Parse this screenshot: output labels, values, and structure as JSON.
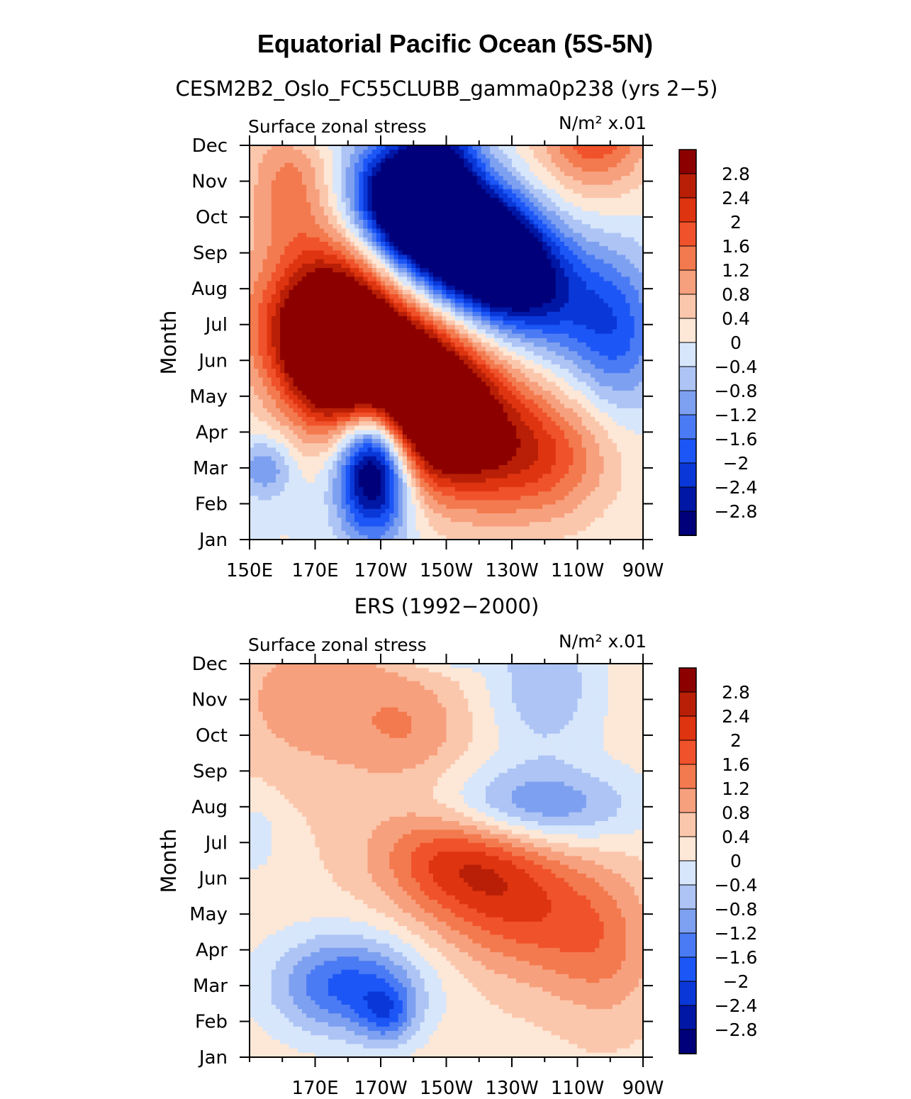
{
  "figure": {
    "title": "Equatorial Pacific Ocean (5S-5N)"
  },
  "colorbar": {
    "levels": [
      -2.8,
      -2.4,
      -2,
      -1.6,
      -1.2,
      -0.8,
      -0.4,
      0,
      0.4,
      0.8,
      1.2,
      1.6,
      2,
      2.4,
      2.8
    ],
    "labels": [
      "2.8",
      "2.4",
      "2",
      "1.6",
      "1.2",
      "0.8",
      "0.4",
      "0",
      "−0.4",
      "−0.8",
      "−1.2",
      "−1.6",
      "−2",
      "−2.4",
      "−2.8"
    ],
    "colors": [
      "#00007a",
      "#0016a5",
      "#0a38d8",
      "#1c56f6",
      "#4a7bf4",
      "#7ea0f0",
      "#adc4f5",
      "#d7e6fb",
      "#fde7d6",
      "#fbc7ac",
      "#f7a07e",
      "#f37a4e",
      "#f0522b",
      "#df3410",
      "#b81f06",
      "#8c0000"
    ]
  },
  "chart_data": [
    {
      "type": "heatmap",
      "title": "CESM2B2_Oslo_FC55CLUBB_gamma0p238 (yrs 2−5)",
      "left_label": "Surface zonal stress",
      "right_label": "N/m² x.01",
      "ylabel": "Month",
      "xlabel": "",
      "x_range_deg_east": [
        150,
        270
      ],
      "x_ticks": [
        150,
        170,
        190,
        210,
        230,
        250,
        270
      ],
      "x_tick_labels": [
        "150E",
        "170E",
        "170W",
        "150W",
        "130W",
        "110W",
        "90W"
      ],
      "y_tick_labels": [
        "Jan",
        "Feb",
        "Mar",
        "Apr",
        "May",
        "Jun",
        "Jul",
        "Aug",
        "Sep",
        "Oct",
        "Nov",
        "Dec"
      ],
      "features": [
        {
          "lon": 188,
          "month": 2.3,
          "amp": -5.0,
          "slon": 8,
          "smon": 1.4,
          "pad": 1
        },
        {
          "lon": 155,
          "month": 2.0,
          "amp": -1.2,
          "slon": 6,
          "smon": 0.6,
          "pad": 1
        },
        {
          "lon": 195,
          "month": 4.2,
          "amp": 6.5,
          "slon": 24,
          "smon": 1.6,
          "tilt": -0.035
        },
        {
          "lon": 176,
          "month": 5.6,
          "amp": 2.2,
          "slon": 10,
          "smon": 1.0
        },
        {
          "lon": 243,
          "month": 2.4,
          "amp": 1.2,
          "slon": 14,
          "smon": 1.2
        },
        {
          "lon": 218,
          "month": 8.2,
          "amp": -6.0,
          "slon": 20,
          "smon": 1.3,
          "tilt": -0.04
        },
        {
          "lon": 200,
          "month": 9.6,
          "amp": -2.8,
          "slon": 10,
          "smon": 1.0
        },
        {
          "lon": 262,
          "month": 5.8,
          "amp": -1.5,
          "slon": 10,
          "smon": 1.6
        },
        {
          "lon": 175,
          "month": 7.2,
          "amp": 1.3,
          "slon": 12,
          "smon": 1.2
        },
        {
          "lon": 163,
          "month": 10.0,
          "amp": 1.4,
          "slon": 10,
          "smon": 1.4
        },
        {
          "lon": 255,
          "month": 11.4,
          "amp": 2.0,
          "slon": 12,
          "smon": 1.2
        },
        {
          "lon": 168,
          "month": 11.8,
          "amp": -1.0,
          "slon": 8,
          "smon": 0.5
        },
        {
          "lon": 210,
          "month": 11.0,
          "amp": -1.3,
          "slon": 8,
          "smon": 0.8
        }
      ]
    },
    {
      "type": "heatmap",
      "title": "ERS (1992−2000)",
      "left_label": "Surface zonal stress",
      "right_label": "N/m² x.01",
      "ylabel": "Month",
      "xlabel": "",
      "x_range_deg_east": [
        150,
        270
      ],
      "x_ticks": [
        170,
        190,
        210,
        230,
        250,
        270
      ],
      "x_tick_labels": [
        "170E",
        "170W",
        "150W",
        "130W",
        "110W",
        "90W"
      ],
      "y_tick_labels": [
        "Jan",
        "Feb",
        "Mar",
        "Apr",
        "May",
        "Jun",
        "Jul",
        "Aug",
        "Sep",
        "Oct",
        "Nov",
        "Dec"
      ],
      "features": [
        {
          "lon": 180,
          "month": 2.0,
          "amp": -2.0,
          "slon": 16,
          "smon": 1.0,
          "pad": 1
        },
        {
          "lon": 192,
          "month": 1.2,
          "amp": -1.2,
          "slon": 6,
          "smon": 0.6,
          "pad": 1
        },
        {
          "lon": 228,
          "month": 4.6,
          "amp": 1.9,
          "slon": 24,
          "smon": 1.5,
          "tilt": -0.03
        },
        {
          "lon": 212,
          "month": 5.6,
          "amp": 0.7,
          "slon": 16,
          "smon": 1.0
        },
        {
          "lon": 235,
          "month": 7.0,
          "amp": -1.6,
          "slon": 22,
          "smon": 0.8
        },
        {
          "lon": 210,
          "month": 11.8,
          "amp": -1.8,
          "slon": 10,
          "smon": 0.5
        },
        {
          "lon": 240,
          "month": 10.4,
          "amp": -1.0,
          "slon": 12,
          "smon": 1.4
        },
        {
          "lon": 172,
          "month": 10.0,
          "amp": 0.8,
          "slon": 22,
          "smon": 1.6
        },
        {
          "lon": 200,
          "month": 9.2,
          "amp": 0.6,
          "slon": 12,
          "smon": 1.0
        },
        {
          "lon": 152,
          "month": 6.2,
          "amp": -0.5,
          "slon": 5,
          "smon": 0.8
        },
        {
          "lon": 258,
          "month": 3.0,
          "amp": 0.5,
          "slon": 10,
          "smon": 1.6
        }
      ],
      "baseline": 0.25
    }
  ]
}
